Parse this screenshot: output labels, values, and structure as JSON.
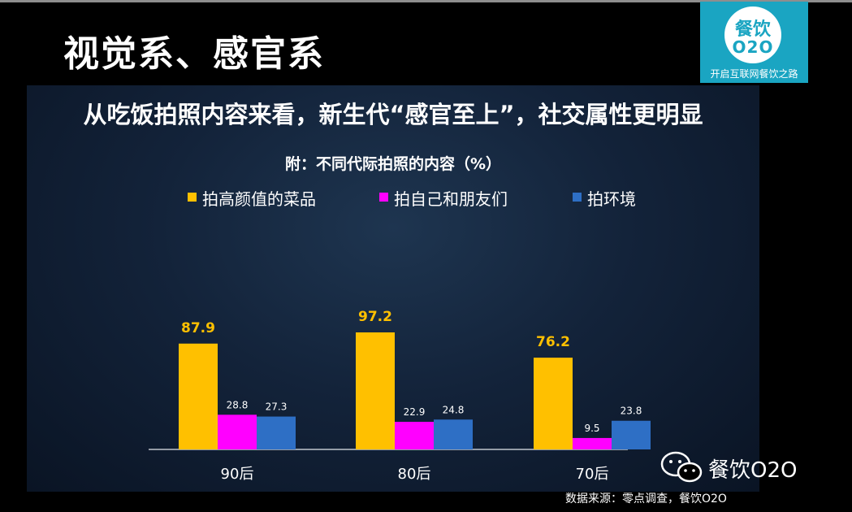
{
  "slide": {
    "title": "视觉系、感官系",
    "source": "数据来源：零点调查，餐饮O2O"
  },
  "logo": {
    "line1": "餐饮",
    "line2": "O2O",
    "tagline": "开启互联网餐饮之路"
  },
  "watermark": {
    "text": "餐饮O2O"
  },
  "chart_data": {
    "type": "bar",
    "headline": "从吃饭拍照内容来看，新生代“感官至上”，社交属性更明显",
    "title": "附：不同代际拍照的内容（%）",
    "categories": [
      "90后",
      "80后",
      "70后"
    ],
    "series": [
      {
        "name": "拍高颜值的菜品",
        "color": "#ffc000",
        "values": [
          87.9,
          97.2,
          76.2
        ],
        "labels": [
          "87.9",
          "97.2",
          "76.2"
        ]
      },
      {
        "name": "拍自己和朋友们",
        "color": "#ff00ff",
        "values": [
          28.8,
          22.9,
          9.5
        ],
        "labels": [
          "28.8",
          "22.9",
          "9.5"
        ]
      },
      {
        "name": "拍环境",
        "color": "#2e6fc5",
        "values": [
          27.3,
          24.8,
          23.8
        ],
        "labels": [
          "27.3",
          "24.8",
          "23.8"
        ]
      }
    ],
    "ylim": [
      0,
      100
    ],
    "grid": false,
    "legend_position": "top"
  }
}
